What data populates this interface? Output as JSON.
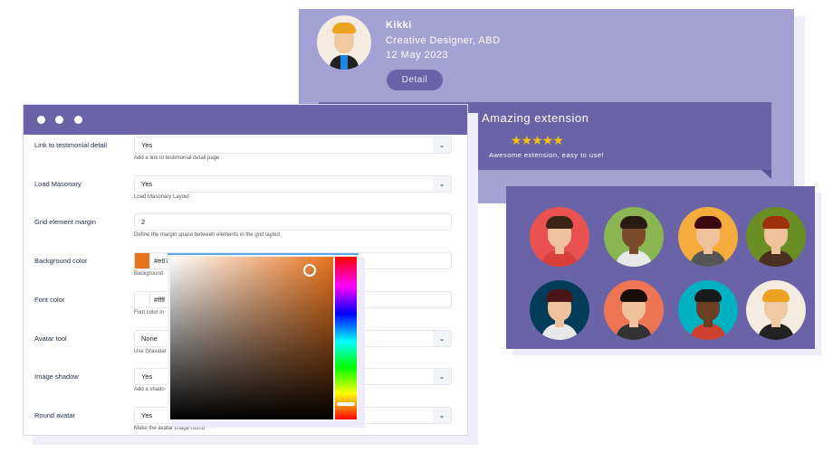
{
  "testimonial": {
    "name": "Kikki",
    "role": "Creative Designer, ABD",
    "date": "12 May 2023",
    "detail_label": "Detail"
  },
  "review": {
    "title": "Amazing extension",
    "stars": "★★★★★",
    "rating": 5,
    "text": "Awesome extension, easy to use!"
  },
  "avatar_colors": [
    "#e9524f",
    "#8ab550",
    "#f5ac3c",
    "#6a8e24",
    "#023c5a",
    "#ed7553",
    "#00b1c2",
    "#f4ebe1"
  ],
  "settings": {
    "rows": [
      {
        "label": "Link to testimonial detail",
        "value": "Yes",
        "help": "Add a link to testimonial detail page",
        "type": "select"
      },
      {
        "label": "Load Masonary",
        "value": "Yes",
        "help": "Load Masonary Layout",
        "type": "select"
      },
      {
        "label": "Grid element margin",
        "value": "2",
        "help": "Define the margin space between elements in the grid layout",
        "type": "text"
      },
      {
        "label": "Background color",
        "value": "#e67",
        "help": "Background",
        "type": "color",
        "swatch": "#e8731d"
      },
      {
        "label": "Font color",
        "value": "#ffff",
        "help": "Font color in",
        "type": "color",
        "swatch": "#ffffff"
      },
      {
        "label": "Avatar tool",
        "value": "None",
        "help": "Use Gravatar",
        "type": "select"
      },
      {
        "label": "Image shadow",
        "value": "Yes",
        "help": "Add a shado",
        "type": "select"
      },
      {
        "label": "Round avatar",
        "value": "Yes",
        "help": "Make the avatar image round",
        "type": "select"
      }
    ]
  },
  "colors": {
    "primary": "#6a63a7",
    "light": "#a4a1d4",
    "star": "#fbbf0c",
    "picked": "#e8731d"
  }
}
